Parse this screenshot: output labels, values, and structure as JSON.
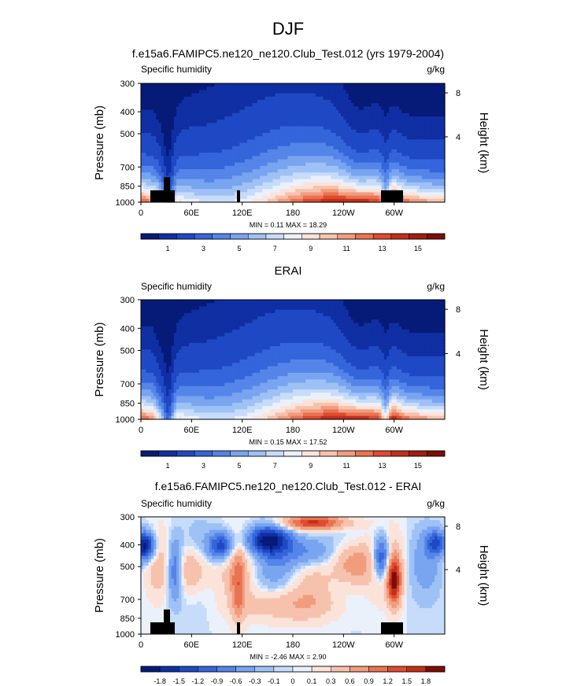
{
  "figure": {
    "title": "DJF"
  },
  "chart_data": [
    {
      "type": "heatmap",
      "title": "f.e15a6.FAMIPC5.ne120_ne120.Club_Test.012 (yrs 1979-2004)",
      "left_label": "Specific humidity",
      "right_label": "g/kg",
      "ylabel": "Pressure (mb)",
      "y2label": "Height (km)",
      "y_ticks": [
        "300",
        "400",
        "500",
        "700",
        "850",
        "1000"
      ],
      "y2_ticks": [
        "8",
        "4"
      ],
      "x_ticks": [
        "0",
        "60E",
        "120E",
        "180",
        "120W",
        "60W"
      ],
      "stats": "MIN =  0.11  MAX = 18.29",
      "colorbar": {
        "labels": [
          "1",
          "3",
          "5",
          "7",
          "9",
          "11",
          "13",
          "15"
        ],
        "colors": [
          "#061a78",
          "#0f2fa3",
          "#1f49c4",
          "#3565da",
          "#5585e8",
          "#78a4f0",
          "#9ec1f6",
          "#c6dcfa",
          "#ebf1fb",
          "#fbe3da",
          "#f7c2ad",
          "#f29c7e",
          "#ea7352",
          "#de4b2e",
          "#c42f1a",
          "#a21d10",
          "#7e0d07"
        ]
      },
      "field": "model"
    },
    {
      "type": "heatmap",
      "title": "ERAI",
      "left_label": "Specific humidity",
      "right_label": "g/kg",
      "ylabel": "Pressure (mb)",
      "y2label": "Height (km)",
      "y_ticks": [
        "300",
        "400",
        "500",
        "700",
        "850",
        "1000"
      ],
      "y2_ticks": [
        "8",
        "4"
      ],
      "x_ticks": [
        "0",
        "60E",
        "120E",
        "180",
        "120W",
        "60W"
      ],
      "stats": "MIN =  0.15  MAX = 17.52",
      "colorbar": {
        "labels": [
          "1",
          "3",
          "5",
          "7",
          "9",
          "11",
          "13",
          "15"
        ],
        "colors": [
          "#061a78",
          "#0f2fa3",
          "#1f49c4",
          "#3565da",
          "#5585e8",
          "#78a4f0",
          "#9ec1f6",
          "#c6dcfa",
          "#ebf1fb",
          "#fbe3da",
          "#f7c2ad",
          "#f29c7e",
          "#ea7352",
          "#de4b2e",
          "#c42f1a",
          "#a21d10",
          "#7e0d07"
        ]
      },
      "field": "obs"
    },
    {
      "type": "heatmap",
      "title": "f.e15a6.FAMIPC5.ne120_ne120.Club_Test.012 - ERAI",
      "left_label": "Specific humidity",
      "right_label": "g/kg",
      "ylabel": "Pressure (mb)",
      "y2label": "Height (km)",
      "y_ticks": [
        "300",
        "400",
        "500",
        "700",
        "850",
        "1000"
      ],
      "y2_ticks": [
        "8",
        "4"
      ],
      "x_ticks": [
        "0",
        "60E",
        "120E",
        "180",
        "120W",
        "60W"
      ],
      "stats": "MIN = -2.46  MAX =  2.90",
      "colorbar": {
        "labels": [
          "-1.8",
          "-1.5",
          "-1.2",
          "-0.9",
          "-0.6",
          "-0.3",
          "-0.1",
          "0",
          "0.1",
          "0.3",
          "0.6",
          "0.9",
          "1.2",
          "1.5",
          "1.8"
        ],
        "colors": [
          "#061a78",
          "#0f2fa3",
          "#1f49c4",
          "#3565da",
          "#5585e8",
          "#78a4f0",
          "#9ec1f6",
          "#c6dcfa",
          "#ebf1fb",
          "#fbe3da",
          "#f7c2ad",
          "#f29c7e",
          "#ea7352",
          "#de4b2e",
          "#c42f1a",
          "#7e0d07"
        ]
      },
      "field": "diff"
    }
  ]
}
